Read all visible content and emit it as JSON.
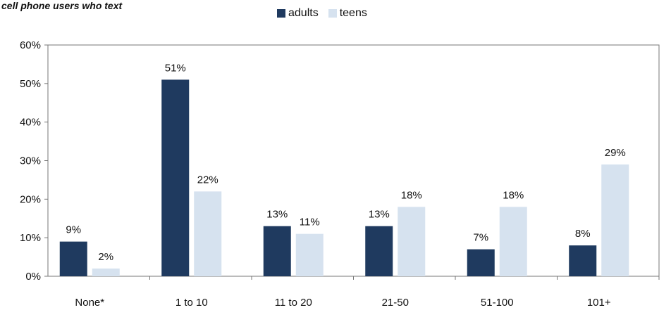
{
  "chart_data": {
    "type": "bar",
    "subtitle": "cell phone users who text",
    "categories": [
      "None*",
      "1 to 10",
      "11 to 20",
      "21-50",
      "51-100",
      "101+"
    ],
    "series": [
      {
        "name": "adults",
        "values": [
          9,
          51,
          13,
          13,
          7,
          8
        ],
        "labels": [
          "9%",
          "51%",
          "13%",
          "13%",
          "7%",
          "8%"
        ]
      },
      {
        "name": "teens",
        "values": [
          2,
          22,
          11,
          18,
          18,
          29
        ],
        "labels": [
          "2%",
          "22%",
          "11%",
          "18%",
          "18%",
          "29%"
        ]
      }
    ],
    "ylim": [
      0,
      60
    ],
    "yticks": [
      0,
      10,
      20,
      30,
      40,
      50,
      60
    ],
    "ytick_labels": [
      "0%",
      "10%",
      "20%",
      "30%",
      "40%",
      "50%",
      "60%"
    ],
    "legend_position": "top-center",
    "grid": false,
    "colors": {
      "adults": "#1f3a5f",
      "teens": "#d6e2ef",
      "axis": "#777777"
    }
  }
}
